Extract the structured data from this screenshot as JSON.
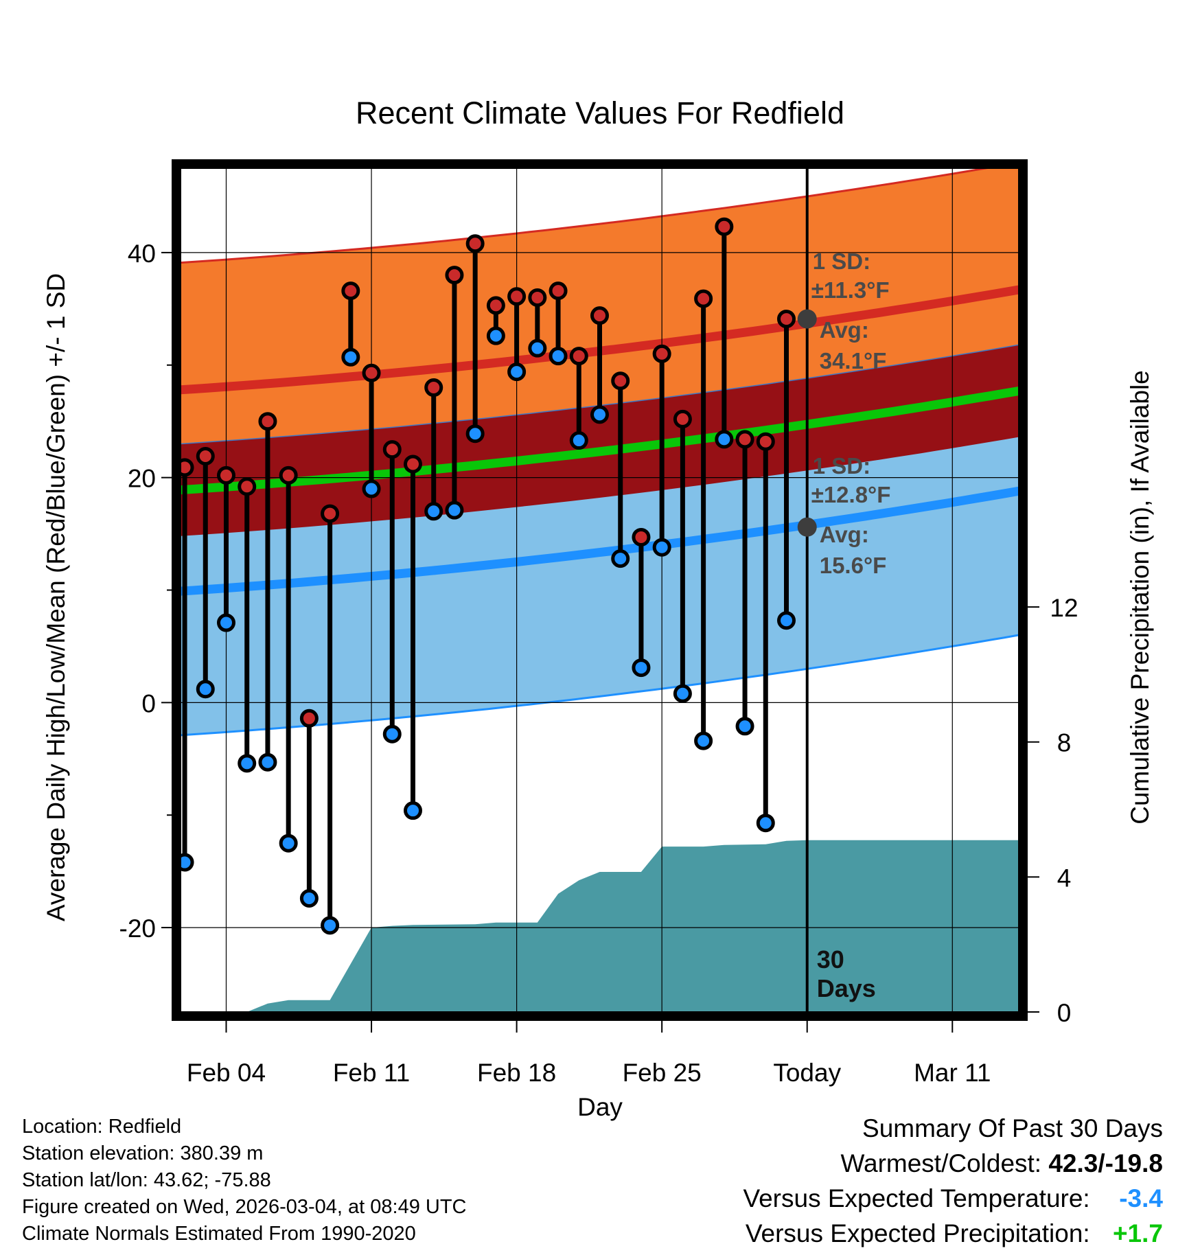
{
  "chart_data": {
    "type": "line",
    "title": "Recent Climate Values For Redfield",
    "xlabel": "Day",
    "ylabel": "Average Daily High/Low/Mean (Red/Blue/Green) +/- 1 SD",
    "y2label": "Cumulative Precipitation (in), If Available",
    "xlim": [
      1.8,
      42.2
    ],
    "ylim": [
      -27.5,
      47.5
    ],
    "y2lim": [
      0,
      25
    ],
    "x_ticks": [
      {
        "day": 4,
        "label": "Feb 04"
      },
      {
        "day": 11,
        "label": "Feb 11"
      },
      {
        "day": 18,
        "label": "Feb 18"
      },
      {
        "day": 25,
        "label": "Feb 25"
      },
      {
        "day": 32,
        "label": "Today"
      },
      {
        "day": 39,
        "label": "Mar 11"
      }
    ],
    "y_ticks": [
      -20,
      0,
      20,
      40
    ],
    "y2_ticks": [
      0,
      4,
      8,
      12
    ],
    "today_day": 32,
    "today_label_line1": "30",
    "today_label_line2": "Days",
    "normals_days": [
      1.8,
      42.2
    ],
    "normal_high": [
      27.8,
      36.7
    ],
    "normal_high_sd": 11.3,
    "normal_low": [
      9.9,
      18.8
    ],
    "normal_low_sd": 12.8,
    "normal_mean": [
      18.9,
      27.7
    ],
    "normal_mean_sd": 4.1,
    "annotation_high": {
      "line1": "1 SD:",
      "line2": "±11.3°F",
      "line3": "Avg:",
      "line4": "34.1°F",
      "avg": 34.1
    },
    "annotation_low": {
      "line1": "1 SD:",
      "line2": "±12.8°F",
      "line3": "Avg:",
      "line4": "15.6°F",
      "avg": 15.6
    },
    "daily": [
      {
        "day": 2,
        "high": 20.9,
        "low": -14.2
      },
      {
        "day": 3,
        "high": 21.9,
        "low": 1.2
      },
      {
        "day": 4,
        "high": 20.2,
        "low": 7.1
      },
      {
        "day": 5,
        "high": 19.2,
        "low": -5.4
      },
      {
        "day": 6,
        "high": 25.0,
        "low": -5.3
      },
      {
        "day": 7,
        "high": 20.2,
        "low": -12.5
      },
      {
        "day": 8,
        "high": -1.4,
        "low": -17.4
      },
      {
        "day": 9,
        "high": 16.8,
        "low": -19.8
      },
      {
        "day": 10,
        "high": 36.6,
        "low": 30.7
      },
      {
        "day": 11,
        "high": 29.3,
        "low": 19.0
      },
      {
        "day": 12,
        "high": 22.5,
        "low": -2.8
      },
      {
        "day": 13,
        "high": 21.2,
        "low": -9.6
      },
      {
        "day": 14,
        "high": 28.0,
        "low": 17.0
      },
      {
        "day": 15,
        "high": 38.0,
        "low": 17.1
      },
      {
        "day": 16,
        "high": 40.8,
        "low": 23.9
      },
      {
        "day": 17,
        "high": 35.3,
        "low": 32.6
      },
      {
        "day": 18,
        "high": 36.1,
        "low": 29.4
      },
      {
        "day": 19,
        "high": 36.0,
        "low": 31.5
      },
      {
        "day": 20,
        "high": 36.6,
        "low": 30.8
      },
      {
        "day": 21,
        "high": 30.8,
        "low": 23.3
      },
      {
        "day": 22,
        "high": 34.4,
        "low": 25.6
      },
      {
        "day": 23,
        "high": 28.6,
        "low": 12.8
      },
      {
        "day": 24,
        "high": 14.7,
        "low": 3.1
      },
      {
        "day": 25,
        "high": 31.0,
        "low": 13.8
      },
      {
        "day": 26,
        "high": 25.2,
        "low": 0.8
      },
      {
        "day": 27,
        "high": 35.9,
        "low": -3.4
      },
      {
        "day": 28,
        "high": 42.3,
        "low": 23.4
      },
      {
        "day": 29,
        "high": 23.4,
        "low": -2.1
      },
      {
        "day": 30,
        "high": 23.2,
        "low": -10.7
      },
      {
        "day": 31,
        "high": 34.1,
        "low": 7.3
      }
    ],
    "precip_cumulative": [
      {
        "day": 1.8,
        "value": 0.0
      },
      {
        "day": 5.0,
        "value": 0.0
      },
      {
        "day": 6.0,
        "value": 0.25
      },
      {
        "day": 7.0,
        "value": 0.35
      },
      {
        "day": 9.0,
        "value": 0.35
      },
      {
        "day": 11.0,
        "value": 2.5
      },
      {
        "day": 12.0,
        "value": 2.55
      },
      {
        "day": 13.0,
        "value": 2.58
      },
      {
        "day": 16.0,
        "value": 2.6
      },
      {
        "day": 17.0,
        "value": 2.65
      },
      {
        "day": 19.0,
        "value": 2.65
      },
      {
        "day": 20.0,
        "value": 3.5
      },
      {
        "day": 21.0,
        "value": 3.9
      },
      {
        "day": 22.0,
        "value": 4.15
      },
      {
        "day": 24.0,
        "value": 4.15
      },
      {
        "day": 25.0,
        "value": 4.9
      },
      {
        "day": 27.0,
        "value": 4.9
      },
      {
        "day": 28.0,
        "value": 4.95
      },
      {
        "day": 30.0,
        "value": 4.97
      },
      {
        "day": 31.0,
        "value": 5.07
      },
      {
        "day": 32.0,
        "value": 5.09
      },
      {
        "day": 42.2,
        "value": 5.09
      }
    ],
    "colors": {
      "high_band": "#f47a2c",
      "high_line": "#d42a22",
      "mean_band": "#961015",
      "mean_line": "#09c609",
      "low_band": "#82c1e9",
      "low_line": "#1e90ff",
      "precip": "#4a9aa3",
      "high_dot": "#c92a2a",
      "low_dot": "#1e90ff",
      "annotation": "#4a4a4a"
    }
  },
  "footer": {
    "location": "Location: Redfield",
    "elevation": "Station elevation: 380.39 m",
    "latlon": "Station lat/lon: 43.62; -75.88",
    "created": "Figure created on Wed, 2026-03-04, at 08:49 UTC",
    "normals": "Climate Normals Estimated From 1990-2020"
  },
  "summary": {
    "title": "Summary Of Past 30 Days",
    "warm_cold_label": "Warmest/Coldest: ",
    "warm_cold_value": "42.3/-19.8",
    "temp_label": "Versus Expected Temperature:",
    "temp_value": "-3.4",
    "temp_color": "#1e90ff",
    "precip_label": "Versus Expected Precipitation:",
    "precip_value": "+1.7",
    "precip_color": "#09c609"
  }
}
